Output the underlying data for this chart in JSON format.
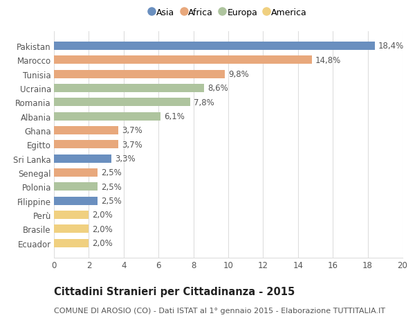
{
  "categories": [
    "Pakistan",
    "Marocco",
    "Tunisia",
    "Ucraina",
    "Romania",
    "Albania",
    "Ghana",
    "Egitto",
    "Sri Lanka",
    "Senegal",
    "Polonia",
    "Filippine",
    "Perù",
    "Brasile",
    "Ecuador"
  ],
  "values": [
    18.4,
    14.8,
    9.8,
    8.6,
    7.8,
    6.1,
    3.7,
    3.7,
    3.3,
    2.5,
    2.5,
    2.5,
    2.0,
    2.0,
    2.0
  ],
  "labels": [
    "18,4%",
    "14,8%",
    "9,8%",
    "8,6%",
    "7,8%",
    "6,1%",
    "3,7%",
    "3,7%",
    "3,3%",
    "2,5%",
    "2,5%",
    "2,5%",
    "2,0%",
    "2,0%",
    "2,0%"
  ],
  "continents": [
    "Asia",
    "Africa",
    "Africa",
    "Europa",
    "Europa",
    "Europa",
    "Africa",
    "Africa",
    "Asia",
    "Africa",
    "Europa",
    "Asia",
    "America",
    "America",
    "America"
  ],
  "colors": {
    "Asia": "#6a8fbf",
    "Africa": "#e8a87c",
    "Europa": "#aec49e",
    "America": "#f0d080"
  },
  "legend_labels": [
    "Asia",
    "Africa",
    "Europa",
    "America"
  ],
  "legend_colors": [
    "#6a8fbf",
    "#e8a87c",
    "#aec49e",
    "#f0d080"
  ],
  "xlim": [
    0,
    20
  ],
  "xticks": [
    0,
    2,
    4,
    6,
    8,
    10,
    12,
    14,
    16,
    18,
    20
  ],
  "title": "Cittadini Stranieri per Cittadinanza - 2015",
  "subtitle": "COMUNE DI AROSIO (CO) - Dati ISTAT al 1° gennaio 2015 - Elaborazione TUTTITALIA.IT",
  "background_color": "#ffffff",
  "grid_color": "#dddddd",
  "bar_height": 0.6,
  "label_fontsize": 8.5,
  "tick_fontsize": 8.5,
  "title_fontsize": 10.5,
  "subtitle_fontsize": 8.0
}
